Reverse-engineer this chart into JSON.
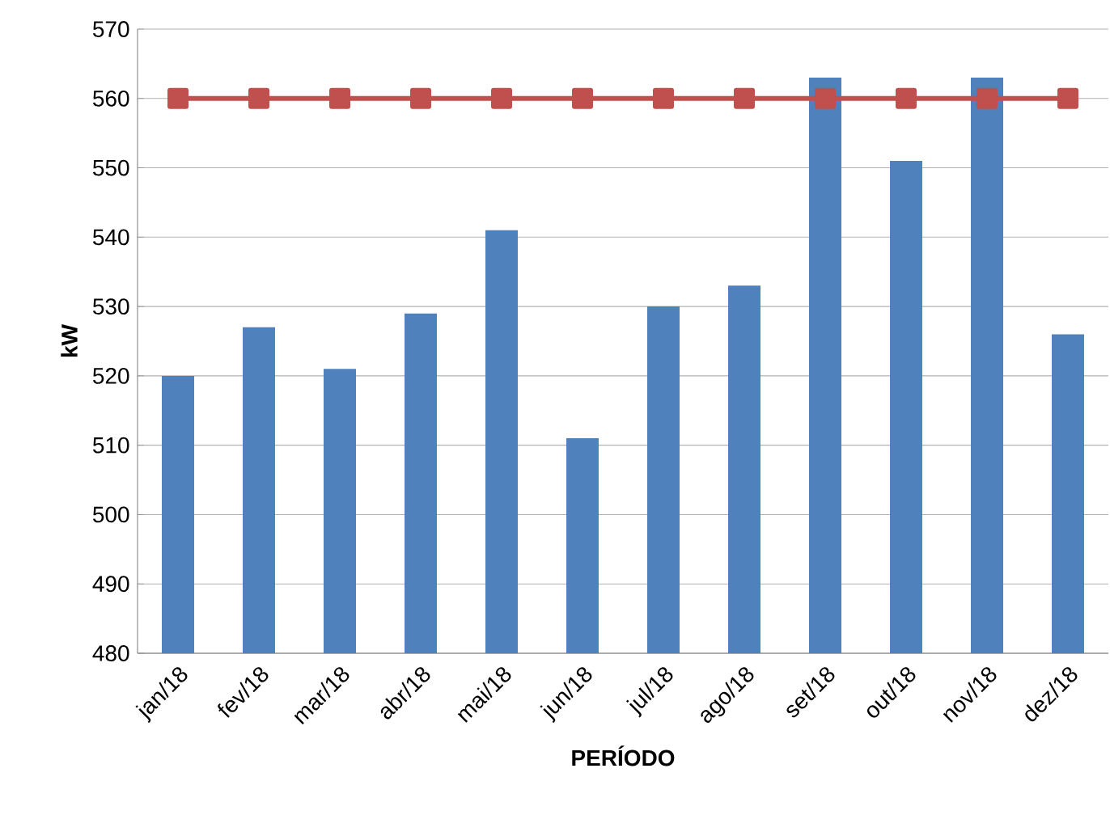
{
  "chart_data": {
    "type": "bar",
    "xlabel": "PERÍODO",
    "ylabel": "kW",
    "categories": [
      "jan/18",
      "fev/18",
      "mar/18",
      "abr/18",
      "mai/18",
      "jun/18",
      "jul/18",
      "ago/18",
      "set/18",
      "out/18",
      "nov/18",
      "dez/18"
    ],
    "series": [
      {
        "color": "#4f81bd",
        "values": [
          520,
          527,
          521,
          529,
          541,
          511,
          530,
          533,
          563,
          551,
          563,
          526
        ]
      },
      {
        "type": "line",
        "color": "#c0504d",
        "marker": "square",
        "line_style": "solid",
        "values": [
          560,
          560,
          560,
          560,
          560,
          560,
          560,
          560,
          560,
          560,
          560,
          560
        ]
      }
    ],
    "ylim": [
      480,
      570
    ],
    "yticks": [
      480,
      490,
      500,
      510,
      520,
      530,
      540,
      550,
      560,
      570
    ],
    "grid": "y",
    "legend": false
  }
}
